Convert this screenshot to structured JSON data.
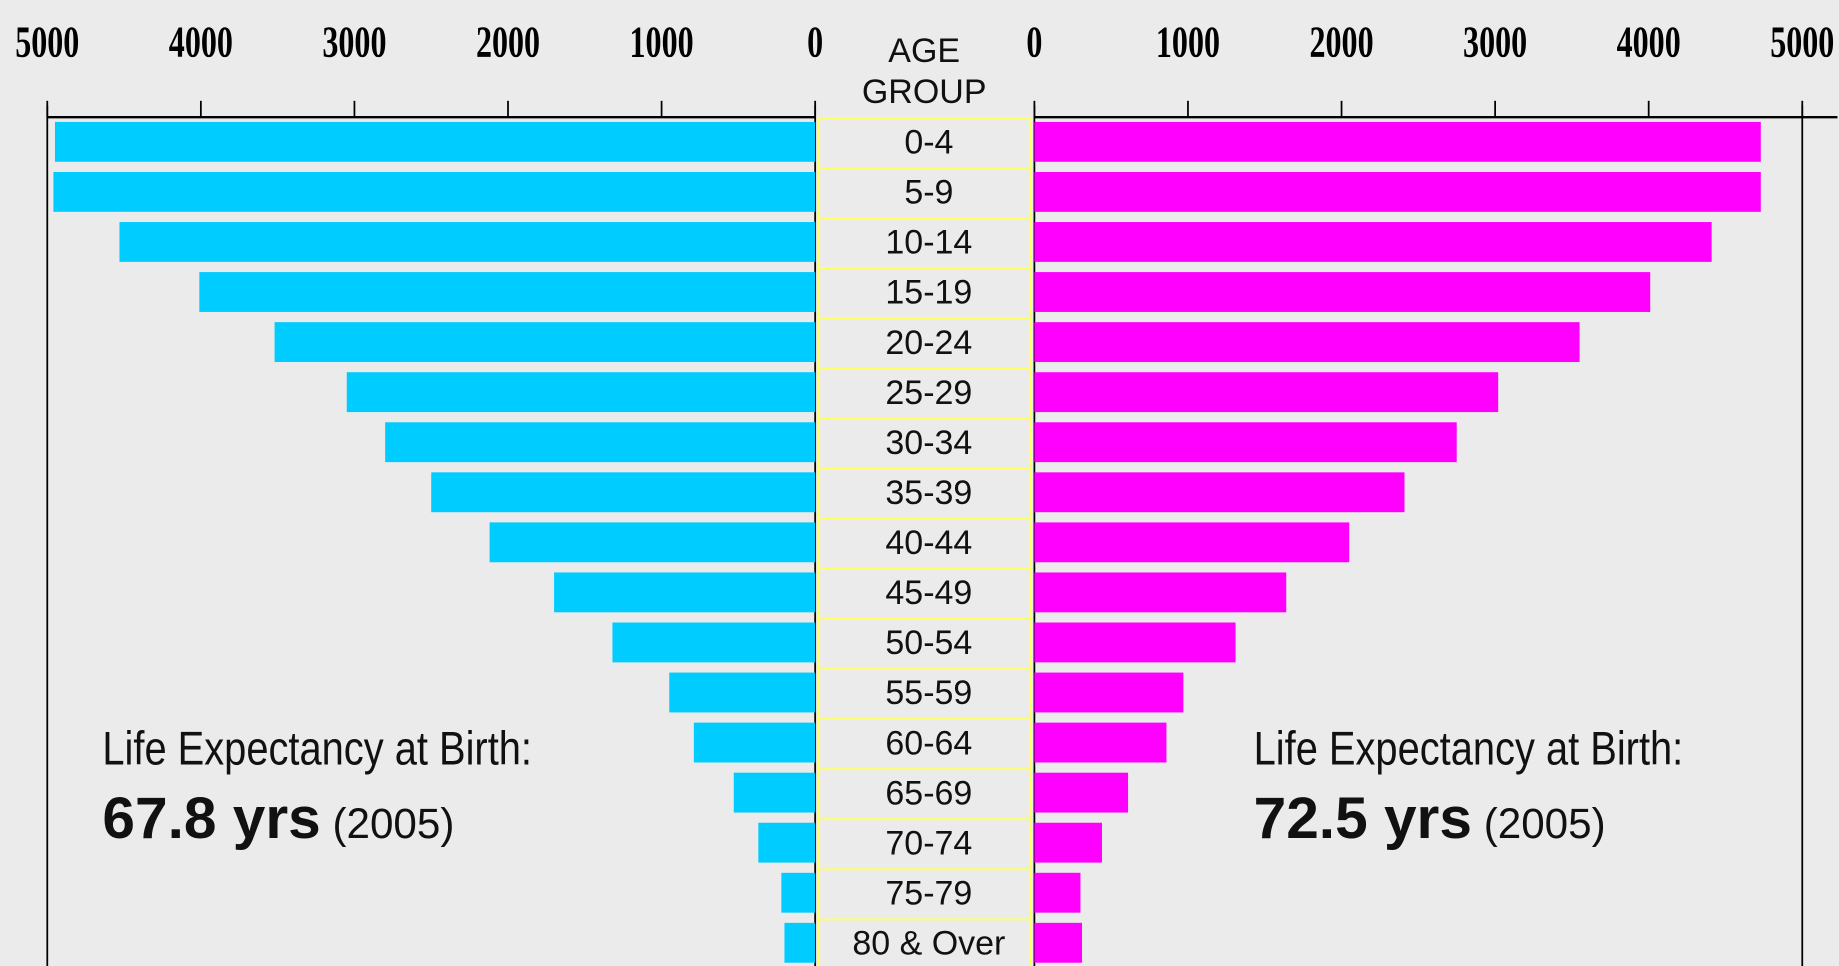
{
  "chart_data": {
    "type": "pyramid",
    "center_label": [
      "AGE",
      "GROUP"
    ],
    "categories": [
      "0-4",
      "5-9",
      "10-14",
      "15-19",
      "20-24",
      "25-29",
      "30-34",
      "35-39",
      "40-44",
      "45-49",
      "50-54",
      "55-59",
      "60-64",
      "65-69",
      "70-74",
      "75-79",
      "80 & Over"
    ],
    "series": [
      {
        "color": "#00ccff",
        "side": "left",
        "values": [
          4950,
          4960,
          4530,
          4010,
          3520,
          3050,
          2800,
          2500,
          2120,
          1700,
          1320,
          950,
          790,
          530,
          370,
          220,
          200
        ]
      },
      {
        "color": "#ff00ff",
        "side": "right",
        "values": [
          4730,
          4730,
          4410,
          4010,
          3550,
          3020,
          2750,
          2410,
          2050,
          1640,
          1310,
          970,
          860,
          610,
          440,
          300,
          310
        ]
      }
    ],
    "xlim": [
      0,
      5000
    ],
    "xticks": [
      0,
      1000,
      2000,
      3000,
      4000,
      5000
    ],
    "annotations": [
      {
        "heading": "Life Expectancy at Birth:",
        "value": "67.8 yrs",
        "year": "(2005)"
      },
      {
        "heading": "Life Expectancy at Birth:",
        "value": "72.5 yrs",
        "year": "(2005)"
      }
    ]
  }
}
